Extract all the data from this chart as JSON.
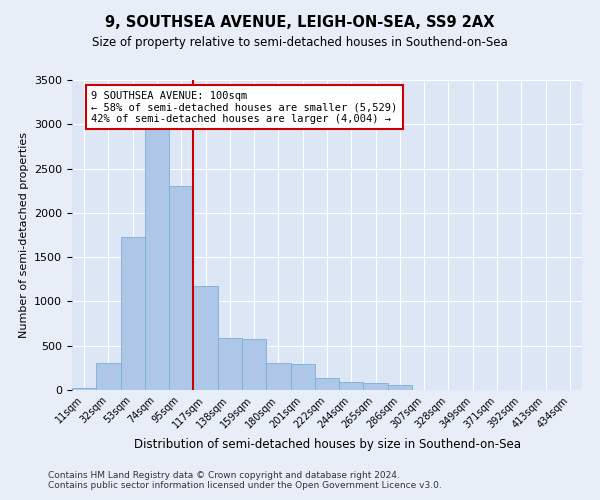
{
  "title": "9, SOUTHSEA AVENUE, LEIGH-ON-SEA, SS9 2AX",
  "subtitle": "Size of property relative to semi-detached houses in Southend-on-Sea",
  "xlabel": "Distribution of semi-detached houses by size in Southend-on-Sea",
  "ylabel": "Number of semi-detached properties",
  "categories": [
    "11sqm",
    "32sqm",
    "53sqm",
    "74sqm",
    "95sqm",
    "117sqm",
    "138sqm",
    "159sqm",
    "180sqm",
    "201sqm",
    "222sqm",
    "244sqm",
    "265sqm",
    "286sqm",
    "307sqm",
    "328sqm",
    "349sqm",
    "371sqm",
    "392sqm",
    "413sqm",
    "434sqm"
  ],
  "values": [
    20,
    310,
    1730,
    2980,
    2300,
    1170,
    590,
    580,
    300,
    290,
    130,
    90,
    80,
    60,
    0,
    0,
    0,
    0,
    0,
    0,
    0
  ],
  "bar_color": "#aec6e8",
  "bar_edgecolor": "#7aafd4",
  "redline_color": "#cc0000",
  "annotation_text": "9 SOUTHSEA AVENUE: 100sqm\n← 58% of semi-detached houses are smaller (5,529)\n42% of semi-detached houses are larger (4,004) →",
  "annotation_box_color": "#ffffff",
  "annotation_box_edgecolor": "#cc0000",
  "ylim": [
    0,
    3500
  ],
  "yticks": [
    0,
    500,
    1000,
    1500,
    2000,
    2500,
    3000,
    3500
  ],
  "bg_color": "#e8eef7",
  "plot_bg_color": "#dce6f5",
  "footer1": "Contains HM Land Registry data © Crown copyright and database right 2024.",
  "footer2": "Contains public sector information licensed under the Open Government Licence v3.0."
}
